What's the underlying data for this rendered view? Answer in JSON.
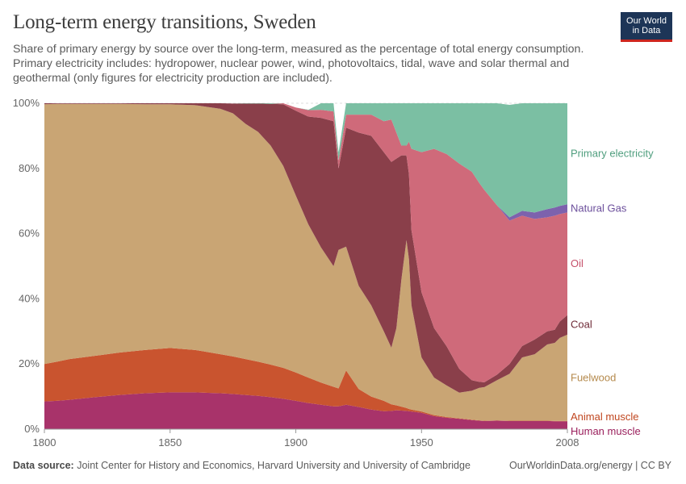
{
  "header": {
    "title": "Long-term energy transitions, Sweden",
    "subtitle": "Share of primary energy by source over the long-term, measured as the percentage of total energy consumption. Primary electricity includes: hydropower, nuclear power, wind, photovoltaics, tidal, wave and solar thermal and geothermal (only figures for electricity production are included)."
  },
  "logo": {
    "line1": "Our World",
    "line2": "in Data"
  },
  "footer": {
    "source_label": "Data source:",
    "source_text": "Joint Center for History and Economics, Harvard University and University of Cambridge",
    "right_text": "OurWorldinData.org/energy | CC BY"
  },
  "colors": {
    "human_muscle": "#a8336a",
    "animal_muscle": "#c9542f",
    "fuelwood": "#c9a574",
    "coal": "#8a3f4a",
    "oil": "#cf6a7a",
    "natural_gas": "#7d62ad",
    "primary_electricity": "#7bbfa3"
  },
  "chart_data": {
    "type": "area",
    "stacked": true,
    "xlim": [
      1800,
      2008
    ],
    "ylim": [
      0,
      100
    ],
    "x_ticks": [
      "1800",
      "1850",
      "1900",
      "1950",
      "2008"
    ],
    "y_ticks": [
      "0%",
      "20%",
      "40%",
      "60%",
      "80%",
      "100%"
    ],
    "grid": "horizontal dashed",
    "legend": "right, inline labels",
    "x": [
      1800,
      1805,
      1810,
      1820,
      1830,
      1840,
      1850,
      1860,
      1870,
      1875,
      1880,
      1885,
      1890,
      1895,
      1900,
      1905,
      1910,
      1915,
      1917,
      1920,
      1925,
      1930,
      1935,
      1938,
      1940,
      1942,
      1944,
      1945,
      1946,
      1950,
      1955,
      1960,
      1965,
      1970,
      1973,
      1975,
      1980,
      1985,
      1990,
      1995,
      2000,
      2003,
      2005,
      2008
    ],
    "series": [
      {
        "name": "Human muscle",
        "values": [
          8.5,
          8.7,
          9.0,
          9.8,
          10.5,
          11.0,
          11.3,
          11.3,
          11.0,
          10.8,
          10.5,
          10.2,
          9.8,
          9.3,
          8.7,
          8.0,
          7.5,
          7.0,
          7.0,
          7.5,
          6.8,
          6.0,
          5.5,
          5.6,
          5.8,
          5.7,
          5.6,
          5.5,
          5.4,
          5.0,
          4.0,
          3.5,
          3.2,
          2.8,
          2.6,
          2.5,
          2.6,
          2.5,
          2.5,
          2.5,
          2.5,
          2.4,
          2.4,
          2.4
        ]
      },
      {
        "name": "Animal muscle",
        "values": [
          11.5,
          12.0,
          12.5,
          12.7,
          13.0,
          13.3,
          13.6,
          13.0,
          12.0,
          11.5,
          11.0,
          10.5,
          10.0,
          9.5,
          8.7,
          7.8,
          6.8,
          6.0,
          5.5,
          10.5,
          5.5,
          4.0,
          3.2,
          2.0,
          1.5,
          1.2,
          0.9,
          0.7,
          0.6,
          0.4,
          0.3,
          0.2,
          0.1,
          0.1,
          0.1,
          0.1,
          0.1,
          0.1,
          0.1,
          0.1,
          0.1,
          0.1,
          0.1,
          0.1
        ]
      },
      {
        "name": "Fuelwood",
        "values": [
          79.7,
          79.1,
          78.3,
          77.3,
          76.3,
          75.4,
          74.8,
          75.1,
          75.3,
          74.6,
          72.2,
          70.5,
          67.2,
          62.0,
          54.3,
          47.0,
          41.5,
          37.0,
          42.5,
          38.0,
          31.7,
          28.0,
          21.3,
          17.4,
          23.7,
          39.1,
          51.5,
          46.0,
          32.0,
          16.6,
          11.5,
          9.7,
          7.9,
          8.9,
          10.0,
          10.3,
          12.3,
          14.4,
          19.4,
          20.4,
          23.4,
          24.0,
          25.5,
          26.5
        ]
      },
      {
        "name": "Coal",
        "values": [
          0.3,
          0.2,
          0.2,
          0.2,
          0.2,
          0.3,
          0.3,
          0.6,
          1.7,
          3.0,
          6.2,
          8.7,
          12.8,
          18.9,
          26.0,
          33.1,
          39.7,
          44.5,
          25.0,
          36.5,
          47.0,
          52.0,
          55.0,
          57.0,
          52.0,
          38.0,
          26.0,
          26.0,
          23.0,
          20.0,
          15.2,
          12.0,
          7.3,
          3.2,
          1.8,
          1.5,
          1.7,
          3.0,
          3.5,
          4.5,
          4.0,
          4.0,
          5.0,
          6.0
        ]
      },
      {
        "name": "Oil",
        "values": [
          0,
          0,
          0,
          0,
          0,
          0,
          0,
          0,
          0,
          0,
          0,
          0,
          0,
          0.3,
          1.0,
          2.0,
          2.5,
          3.0,
          2.5,
          4.0,
          5.5,
          6.5,
          9.5,
          13.0,
          8.0,
          3.0,
          3.0,
          10.0,
          25.0,
          43.0,
          55.0,
          59.0,
          63.0,
          64.0,
          61.0,
          59.0,
          52.0,
          44.0,
          40.0,
          37.0,
          35.0,
          35.0,
          33.0,
          31.5
        ]
      },
      {
        "name": "Natural Gas",
        "values": [
          0,
          0,
          0,
          0,
          0,
          0,
          0,
          0,
          0,
          0,
          0,
          0,
          0,
          0,
          0,
          0,
          0,
          0,
          0,
          0,
          0,
          0,
          0,
          0,
          0,
          0,
          0,
          0,
          0,
          0,
          0,
          0,
          0,
          0,
          0,
          0,
          0,
          1.0,
          1.5,
          2.0,
          2.5,
          2.5,
          2.5,
          2.5
        ]
      },
      {
        "name": "Primary electricity",
        "values": [
          0,
          0,
          0,
          0,
          0,
          0,
          0,
          0,
          0,
          0,
          0.1,
          0.1,
          0.2,
          0,
          0,
          0.1,
          2.0,
          2.5,
          2.5,
          3.5,
          3.5,
          3.5,
          5.5,
          5.0,
          9.0,
          13.0,
          13.0,
          11.8,
          14.0,
          15.0,
          14.0,
          15.6,
          18.5,
          21.0,
          24.5,
          26.6,
          31.3,
          34.5,
          33.0,
          33.5,
          32.5,
          32.0,
          31.5,
          31.0
        ]
      }
    ],
    "labels": [
      {
        "name": "Primary electricity",
        "label": "Primary electricity"
      },
      {
        "name": "Natural Gas",
        "label": "Natural Gas"
      },
      {
        "name": "Oil",
        "label": "Oil"
      },
      {
        "name": "Coal",
        "label": "Coal"
      },
      {
        "name": "Fuelwood",
        "label": "Fuelwood"
      },
      {
        "name": "Animal muscle",
        "label": "Animal muscle"
      },
      {
        "name": "Human muscle",
        "label": "Human muscle"
      }
    ]
  }
}
